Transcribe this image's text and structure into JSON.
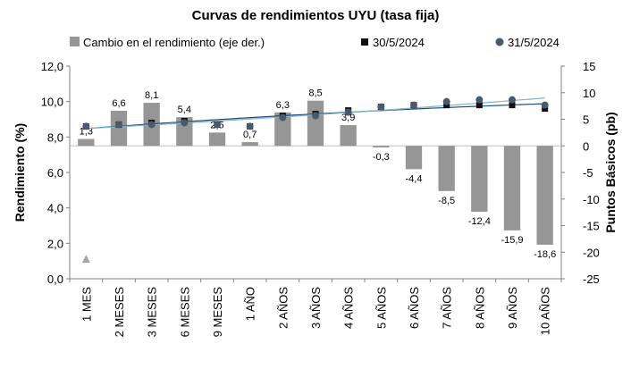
{
  "chart_data": {
    "type": "bar+scatter",
    "title": "Curvas de rendimientos UYU (tasa fija)",
    "ylabel": "Rendimiento (%)",
    "y2label": "Puntos Básicos (pb)",
    "ylim": [
      0,
      12
    ],
    "y2lim": [
      -25,
      15
    ],
    "yticks": [
      "0,0",
      "2,0",
      "4,0",
      "6,0",
      "8,0",
      "10,0",
      "12,0"
    ],
    "y2ticks": [
      "15",
      "10",
      "5",
      "0",
      "-5",
      "-10",
      "-15",
      "-20",
      "-25"
    ],
    "categories": [
      "1 MES",
      "2 MESES",
      "3 MESES",
      "6 MESES",
      "9 MESES",
      "1 AÑO",
      "2 AÑOS",
      "3 AÑOS",
      "4 AÑOS",
      "5 AÑOS",
      "6 AÑOS",
      "7 AÑOS",
      "8 AÑOS",
      "9 AÑOS",
      "10 AÑOS"
    ],
    "legend_position": "top",
    "series": [
      {
        "name": "Cambio en el rendimiento (eje der.)",
        "kind": "bar",
        "axis": "right",
        "color": "#969696",
        "values": [
          1.3,
          6.6,
          8.1,
          5.4,
          2.5,
          0.7,
          6.3,
          8.5,
          3.9,
          -0.3,
          -4.4,
          -8.5,
          -12.4,
          -15.9,
          -18.6
        ],
        "labels": [
          "1,3",
          "6,6",
          "8,1",
          "5,4",
          "2,5",
          "0,7",
          "6,3",
          "8,5",
          "3,9",
          "-0,3",
          "-4,4",
          "-8,5",
          "-12,4",
          "-15,9",
          "-18,6"
        ]
      },
      {
        "name": "30/5/2024",
        "kind": "scatter",
        "axis": "left",
        "color": "#111111",
        "marker": "square",
        "values": [
          8.6,
          8.7,
          8.8,
          8.9,
          8.7,
          8.6,
          9.2,
          9.3,
          9.5,
          9.7,
          9.8,
          9.8,
          9.8,
          9.8,
          9.6
        ]
      },
      {
        "name": "31/5/2024",
        "kind": "scatter",
        "axis": "left",
        "color": "#4a5a6e",
        "marker": "circle",
        "values": [
          8.6,
          8.7,
          8.7,
          8.8,
          8.7,
          8.6,
          9.1,
          9.2,
          9.4,
          9.7,
          9.8,
          10.0,
          10.1,
          10.1,
          9.8
        ]
      }
    ],
    "extra_marker": {
      "kind": "triangle",
      "color": "#a6a6a6",
      "value": 1.1,
      "category_index": 0
    },
    "trendline_colors": [
      "#1f4e79",
      "#7fb6c9"
    ]
  }
}
